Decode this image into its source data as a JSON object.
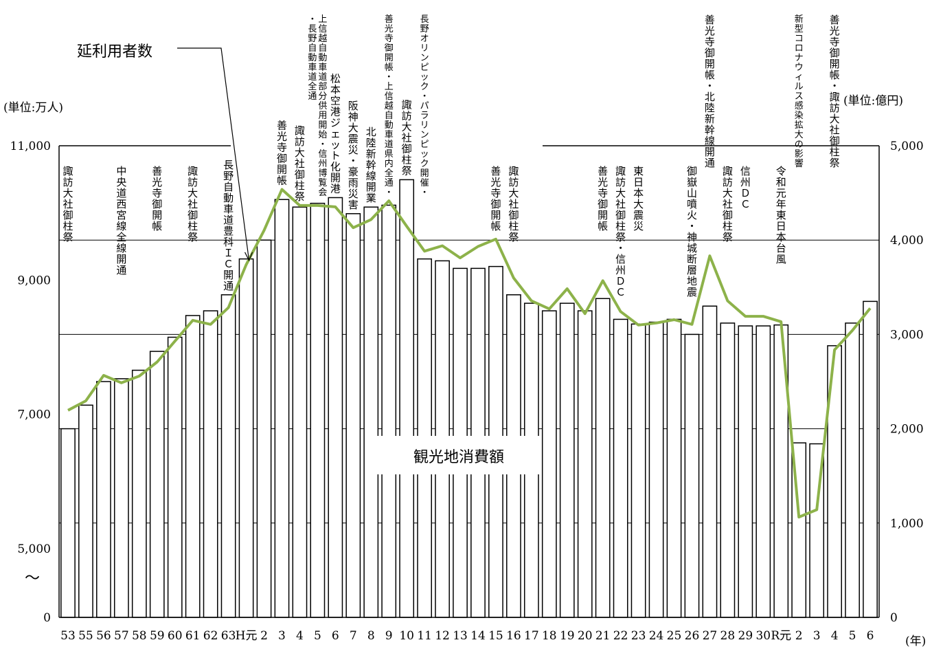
{
  "chart_data": {
    "type": "bar",
    "left_unit": "(単位:万人)",
    "right_unit": "(単位:億円)",
    "x_unit": "(年)",
    "callout_line": "延利用者数",
    "callout_bar": "観光地消費額",
    "break_mark": "〜",
    "left_ticks": [
      "11,000",
      "9,000",
      "7,000",
      "5,000",
      "0"
    ],
    "right_ticks": [
      "5,000",
      "4,000",
      "3,000",
      "2,000",
      "1,000",
      "0"
    ],
    "categories": [
      "53",
      "55",
      "56",
      "57",
      "58",
      "59",
      "60",
      "61",
      "62",
      "63",
      "H元",
      "2",
      "3",
      "4",
      "5",
      "6",
      "7",
      "8",
      "9",
      "10",
      "11",
      "12",
      "13",
      "14",
      "15",
      "16",
      "17",
      "18",
      "19",
      "20",
      "21",
      "22",
      "23",
      "24",
      "25",
      "26",
      "27",
      "28",
      "29",
      "30",
      "R元",
      "2",
      "3",
      "4",
      "5",
      "6"
    ],
    "series": [
      {
        "name": "観光地消費額",
        "kind": "bar",
        "axis": "right",
        "values": [
          2000,
          2250,
          2500,
          2530,
          2620,
          2820,
          2970,
          3200,
          3250,
          3420,
          3800,
          4000,
          4430,
          4350,
          4390,
          4450,
          4280,
          4350,
          4370,
          4640,
          3800,
          3780,
          3700,
          3700,
          3720,
          3420,
          3330,
          3250,
          3330,
          3250,
          3380,
          3160,
          3110,
          3130,
          3160,
          3000,
          3300,
          3120,
          3090,
          3090,
          3100,
          1850,
          1840,
          2880,
          3120,
          3350
        ]
      },
      {
        "name": "延利用者数",
        "kind": "line",
        "axis": "left",
        "values": [
          7060,
          7200,
          7580,
          7470,
          7570,
          7780,
          8090,
          8400,
          8340,
          8590,
          9230,
          9740,
          10350,
          10110,
          10110,
          10090,
          9780,
          9900,
          10180,
          9800,
          9430,
          9510,
          9330,
          9500,
          9610,
          9030,
          8690,
          8570,
          8870,
          8500,
          8990,
          8530,
          8330,
          8360,
          8410,
          8340,
          9360,
          8690,
          8460,
          8460,
          8380,
          5470,
          5580,
          7960,
          8250,
          8580
        ]
      }
    ],
    "annotations": [
      {
        "at": "53",
        "lines": [
          "諏訪大社御柱祭"
        ]
      },
      {
        "at": "57",
        "lines": [
          "中央道西宮線全線開通"
        ]
      },
      {
        "at": "59",
        "lines": [
          "善光寺御開帳"
        ]
      },
      {
        "at": "61",
        "lines": [
          "諏訪大社御柱祭"
        ]
      },
      {
        "at": "63",
        "lines": [
          "長野自動車道豊科ＩＣ開通"
        ]
      },
      {
        "at": "3",
        "lines": [
          "善光寺御開帳"
        ]
      },
      {
        "at": "4",
        "lines": [
          "諏訪大社御柱祭"
        ]
      },
      {
        "at": "5",
        "lines": [
          "・長野自動車道全通",
          "上信越自動車道部分供用開始・信州博覧会"
        ]
      },
      {
        "at": "6",
        "lines": [
          "松本空港ジェット化開港"
        ]
      },
      {
        "at": "7",
        "lines": [
          "阪神大震災・豪雨災害"
        ]
      },
      {
        "at": "8",
        "lines": [
          "北陸新幹線開業"
        ]
      },
      {
        "at": "9",
        "lines": [
          "善光寺御開帳・上信越自動車道県内全通・"
        ]
      },
      {
        "at": "10",
        "lines": [
          "諏訪大社御柱祭"
        ]
      },
      {
        "at": "11",
        "lines": [
          "長野オリンピック・パラリンピック開催・"
        ]
      },
      {
        "at": "15",
        "lines": [
          "善光寺御開帳"
        ]
      },
      {
        "at": "16",
        "lines": [
          "諏訪大社御柱祭"
        ]
      },
      {
        "at": "21",
        "lines": [
          "善光寺御開帳"
        ]
      },
      {
        "at": "22",
        "lines": [
          "諏訪大社御柱祭・信州ＤＣ"
        ]
      },
      {
        "at": "23",
        "lines": [
          "東日本大震災"
        ]
      },
      {
        "at": "26",
        "lines": [
          "御嶽山噴火・神城断層地震"
        ]
      },
      {
        "at": "27",
        "lines": [
          "善光寺御開帳・北陸新幹線開通"
        ]
      },
      {
        "at": "28",
        "lines": [
          "諏訪大社御柱祭"
        ]
      },
      {
        "at": "29",
        "lines": [
          "信州ＤＣ"
        ]
      },
      {
        "at": "R元",
        "lines": [
          "令和元年東日本台風"
        ]
      },
      {
        "at": "2",
        "lines": [
          "新型コロナウィルス感染拡大の影響"
        ]
      },
      {
        "at": "4",
        "lines": [
          "善光寺御開帳・諏訪大社御柱祭"
        ]
      }
    ],
    "grid": true,
    "legend": "none"
  }
}
